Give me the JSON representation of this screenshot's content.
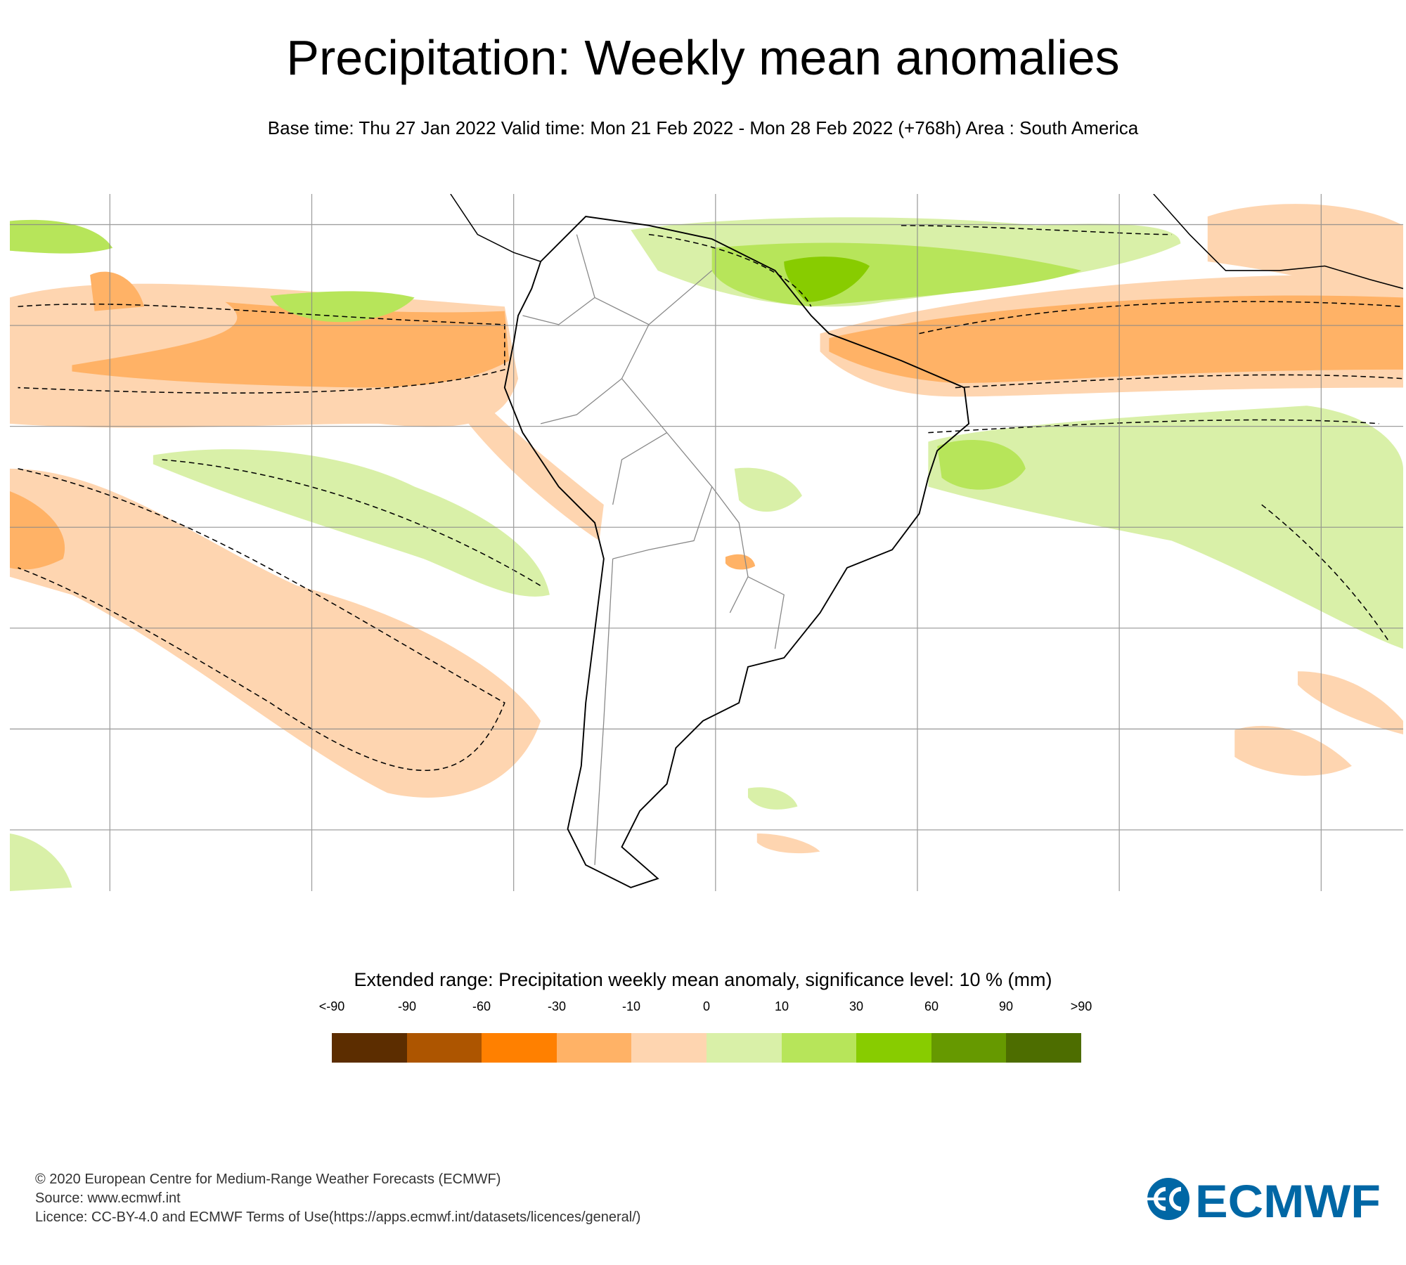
{
  "title": "Precipitation: Weekly mean anomalies",
  "subtitle": "Base time: Thu 27 Jan 2022 Valid time: Mon 21 Feb 2022 - Mon 28 Feb 2022 (+768h) Area : South America",
  "map": {
    "area": "South America",
    "layers": [
      "precipitation-anomaly-shading",
      "significance-contour-dashed",
      "coastlines",
      "country-borders",
      "graticule"
    ]
  },
  "legend": {
    "title": "Extended range: Precipitation weekly mean anomaly, significance level: 10 % (mm)",
    "labels": [
      "<-90",
      "-90",
      "-60",
      "-30",
      "-10",
      "0",
      "10",
      "30",
      "60",
      "90",
      ">90"
    ],
    "colors": [
      "#5c2d00",
      "#ad5500",
      "#ff8000",
      "#ffb266",
      "#fed5b0",
      "#d9f0a8",
      "#b7e55a",
      "#88cc00",
      "#669900",
      "#4d6d00"
    ]
  },
  "footer": {
    "line1": "© 2020 European Centre for Medium-Range Weather Forecasts (ECMWF)",
    "line2": "Source: www.ecmwf.int",
    "line3": "Licence: CC-BY-4.0 and ECMWF Terms of Use(https://apps.ecmwf.int/datasets/licences/general/)"
  },
  "logo": {
    "text": "ECMWF",
    "color": "#0067a5"
  }
}
